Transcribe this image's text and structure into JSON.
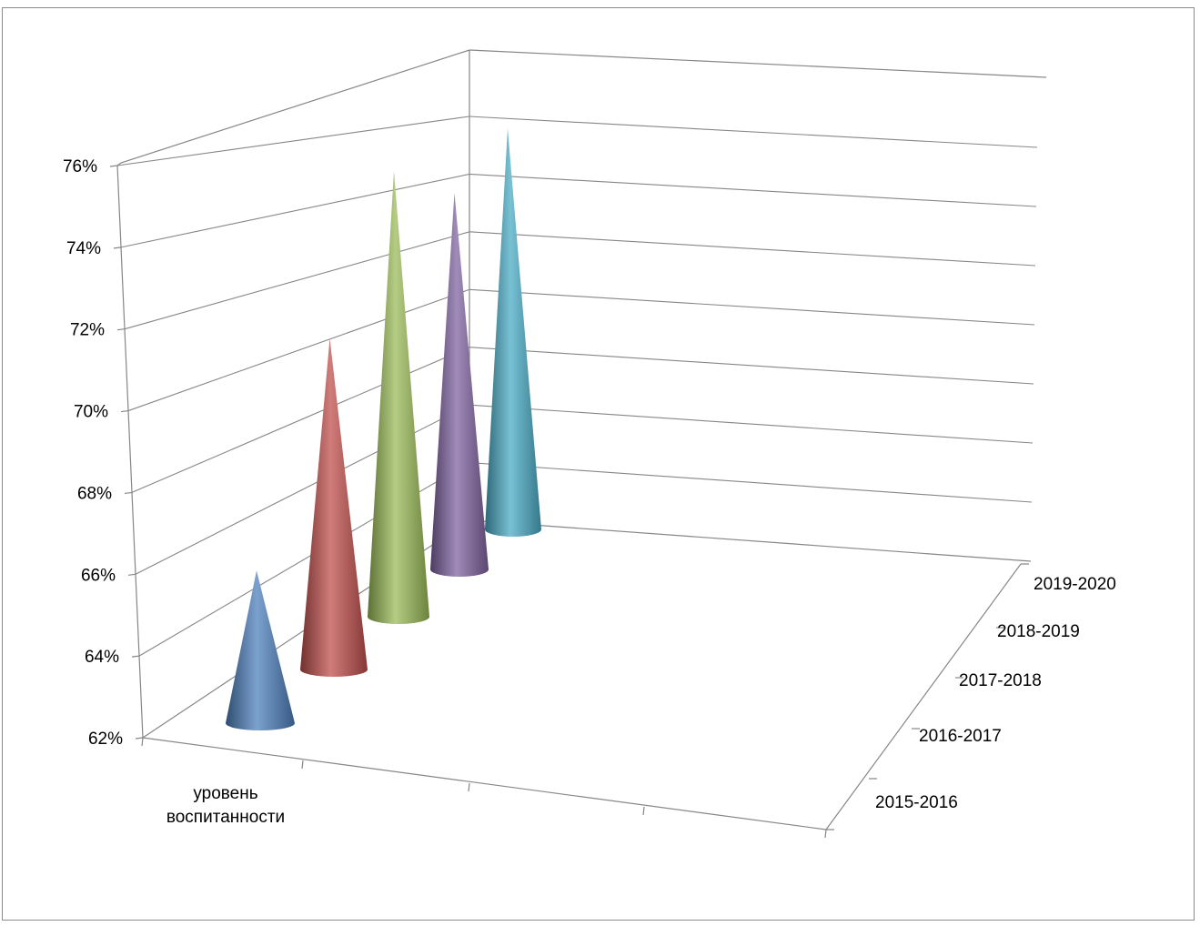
{
  "chart_data": {
    "type": "bar",
    "bar_shape": "cone",
    "three_d": true,
    "categories": [
      "уровень воспитанности"
    ],
    "category_label_lines": [
      "уровень",
      "воспитанности"
    ],
    "y_tick_labels": [
      "62%",
      "64%",
      "66%",
      "68%",
      "70%",
      "72%",
      "74%",
      "76%"
    ],
    "ylim": [
      0.62,
      0.76
    ],
    "y_ticks": [
      0.62,
      0.64,
      0.66,
      0.68,
      0.7,
      0.72,
      0.74,
      0.76
    ],
    "depth_labels": [
      "2015-2016",
      "2016-2017",
      "2017-2018",
      "2018-2019",
      "2019-2020"
    ],
    "series": [
      {
        "name": "2015-2016",
        "values": [
          0.66
        ],
        "color": "#4f81bd"
      },
      {
        "name": "2016-2017",
        "values": [
          0.71
        ],
        "color": "#c0504d"
      },
      {
        "name": "2017-2018",
        "values": [
          0.75
        ],
        "color": "#9bbb59"
      },
      {
        "name": "2018-2019",
        "values": [
          0.74
        ],
        "color": "#8064a2"
      },
      {
        "name": "2019-2020",
        "values": [
          0.76
        ],
        "color": "#4bacc6"
      }
    ],
    "grid": true,
    "legend": "none"
  }
}
